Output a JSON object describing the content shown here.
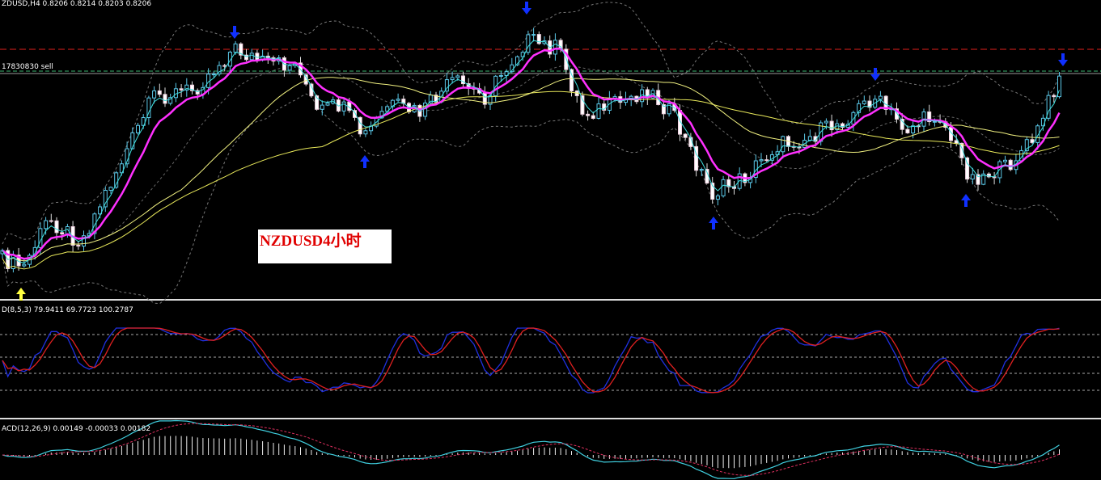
{
  "header": {
    "symbol_info": "ZDUSD,H4 0.8206 0.8214 0.8203 0.8206",
    "order_label": "17830830 sell",
    "annotation": "NZDUSD4小时"
  },
  "indicators": {
    "stochastic": "D(8,5,3) 79.9411 69.7723 100.2787",
    "macd": "ACD(12,26,9) 0.00149 -0.00033 0.00182"
  }
}
